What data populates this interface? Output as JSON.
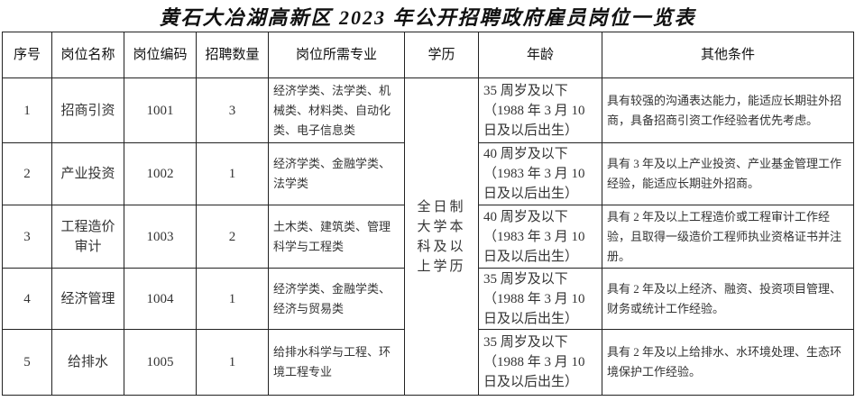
{
  "title": "黄石大冶湖高新区 2023 年公开招聘政府雇员岗位一览表",
  "headers": [
    "序号",
    "岗位名称",
    "岗位编码",
    "招聘数量",
    "岗位所需专业",
    "学历",
    "年龄",
    "其他条件"
  ],
  "education": "全日制大学本科及以上学历",
  "rows": [
    {
      "no": "1",
      "name": "招商引资",
      "code": "1001",
      "count": "3",
      "major": "经济学类、法学类、机械类、材料类、自动化类、电子信息类",
      "age": "35 周岁及以下（1988 年 3 月 10 日及以后出生）",
      "other": "具有较强的沟通表达能力，能适应长期驻外招商，具备招商引资工作经验者优先考虑。"
    },
    {
      "no": "2",
      "name": "产业投资",
      "code": "1002",
      "count": "1",
      "major": "经济学类、金融学类、法学类",
      "age": "40 周岁及以下（1983 年 3 月 10 日及以后出生）",
      "other": "具有 3 年及以上产业投资、产业基金管理工作经验，能适应长期驻外招商。"
    },
    {
      "no": "3",
      "name": "工程造价审计",
      "code": "1003",
      "count": "2",
      "major": "土木类、建筑类、管理科学与工程类",
      "age": "40 周岁及以下（1983 年 3 月 10 日及以后出生）",
      "other": "具有 2 年及以上工程造价或工程审计工作经验，且取得一级造价工程师执业资格证书并注册。"
    },
    {
      "no": "4",
      "name": "经济管理",
      "code": "1004",
      "count": "1",
      "major": "经济学类、金融学类、经济与贸易类",
      "age": "35 周岁及以下（1988 年 3 月 10 日及以后出生）",
      "other": "具有 2 年及以上经济、融资、投资项目管理、财务或统计工作经验。"
    },
    {
      "no": "5",
      "name": "给排水",
      "code": "1005",
      "count": "1",
      "major": "给排水科学与工程、环境工程专业",
      "age": "35 周岁及以下（1988 年 3 月 10 日及以后出生）",
      "other": "具有 2 年及以上给排水、水环境处理、生态环境保护工作经验。"
    }
  ]
}
